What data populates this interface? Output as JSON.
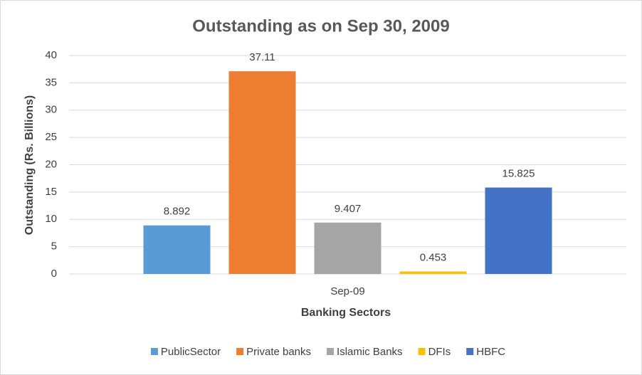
{
  "chart_data": {
    "type": "bar",
    "title": "Outstanding as on Sep 30, 2009",
    "x_label": "Banking Sectors",
    "y_label": "Outstanding (Rs. Billions)",
    "categories": [
      "Sep-09"
    ],
    "series": [
      {
        "name": "PublicSector",
        "color": "#5b9bd5",
        "values": [
          8.892
        ]
      },
      {
        "name": "Private banks",
        "color": "#ed7d31",
        "values": [
          37.11
        ]
      },
      {
        "name": "Islamic Banks",
        "color": "#a5a5a5",
        "values": [
          9.407
        ]
      },
      {
        "name": "DFIs",
        "color": "#ffc000",
        "values": [
          0.453
        ]
      },
      {
        "name": "HBFC",
        "color": "#4472c4",
        "values": [
          15.825
        ]
      }
    ],
    "ylim": [
      0,
      40
    ],
    "yticks": [
      0,
      5,
      10,
      15,
      20,
      25,
      30,
      35,
      40
    ],
    "grid": true,
    "legend": "bottom"
  }
}
